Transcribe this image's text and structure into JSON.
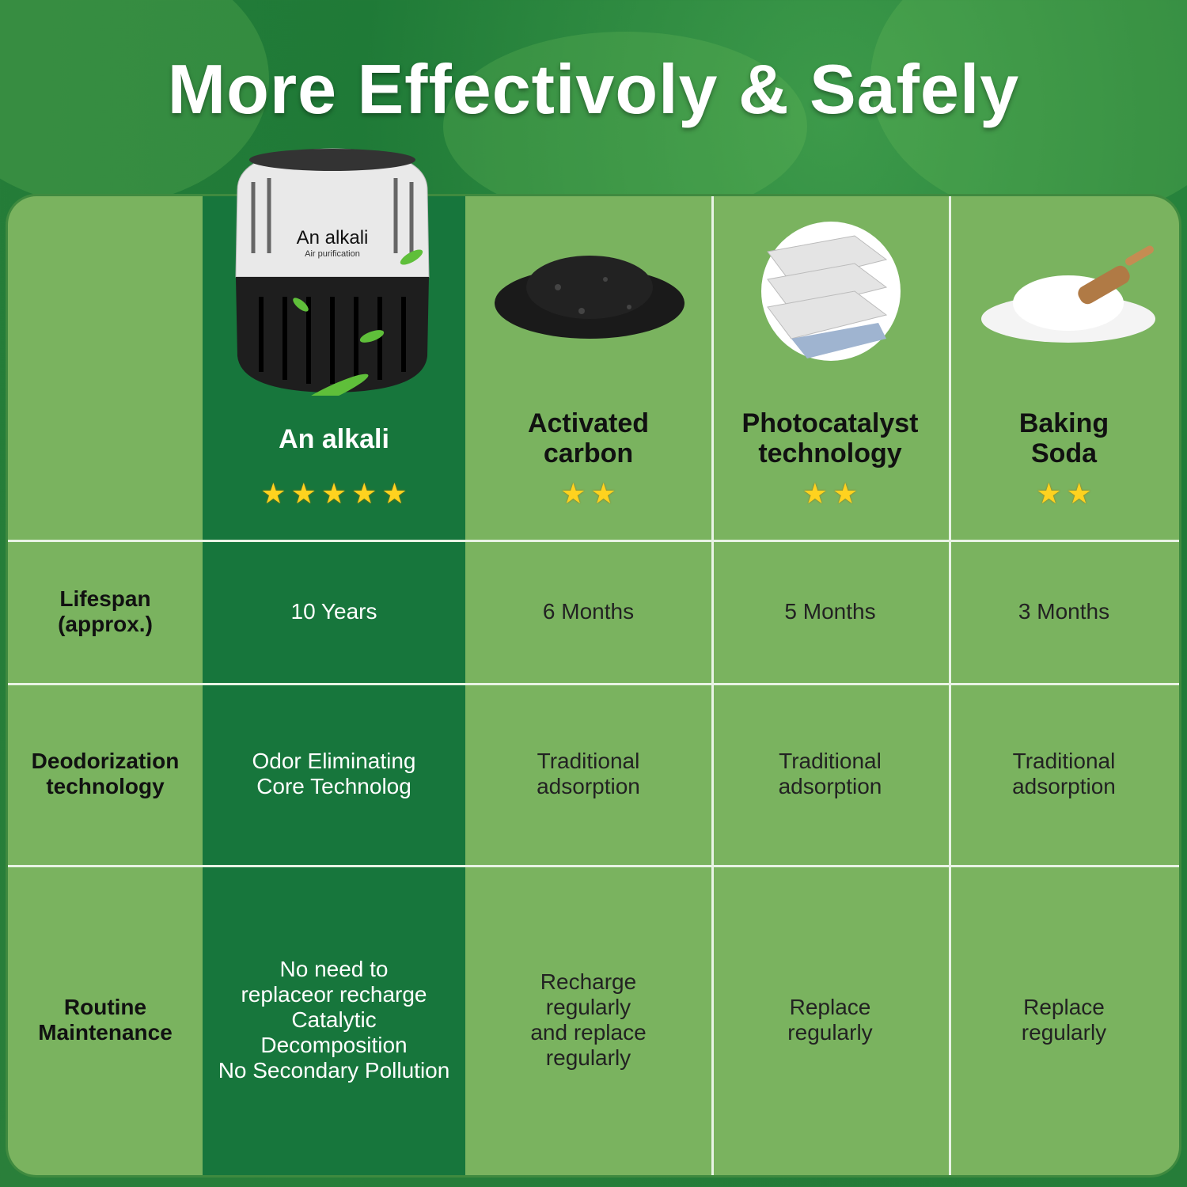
{
  "title": "More Effectivoly & Safely",
  "product_label": {
    "brand": "An alkali",
    "tagline": "Air purification"
  },
  "columns": [
    {
      "name": "An alkali",
      "stars": 5,
      "image": "purifier-device"
    },
    {
      "name_line1": "Activated",
      "name_line2": "carbon",
      "stars": 2,
      "image": "charcoal-pile"
    },
    {
      "name_line1": "Photocatalyst",
      "name_line2": "technology",
      "stars": 2,
      "image": "filter-layers"
    },
    {
      "name_line1": "Baking",
      "name_line2": "Soda",
      "stars": 2,
      "image": "baking-soda-pile"
    }
  ],
  "rows": [
    {
      "label_line1": "Lifespan",
      "label_line2": "(approx.)",
      "values": [
        [
          "10 Years"
        ],
        [
          "6 Months"
        ],
        [
          "5 Months"
        ],
        [
          "3 Months"
        ]
      ]
    },
    {
      "label_line1": "Deodorization",
      "label_line2": "technology",
      "values": [
        [
          "Odor Eliminating",
          "Core Technolog"
        ],
        [
          "Traditional",
          "adsorption"
        ],
        [
          "Traditional",
          "adsorption"
        ],
        [
          "Traditional",
          "adsorption"
        ]
      ]
    },
    {
      "label_line1": "Routine",
      "label_line2": "Maintenance",
      "values": [
        [
          "No need to",
          "replaceor recharge",
          "Catalytic",
          "Decomposition",
          "No Secondary Pollution"
        ],
        [
          "Recharge",
          "regularly",
          "and replace",
          "regularly"
        ],
        [
          "Replace",
          "regularly"
        ],
        [
          "Replace",
          "regularly"
        ]
      ]
    }
  ],
  "colors": {
    "highlight": "#17763c",
    "table": "#7ab35f",
    "star": "#ffd21f"
  }
}
